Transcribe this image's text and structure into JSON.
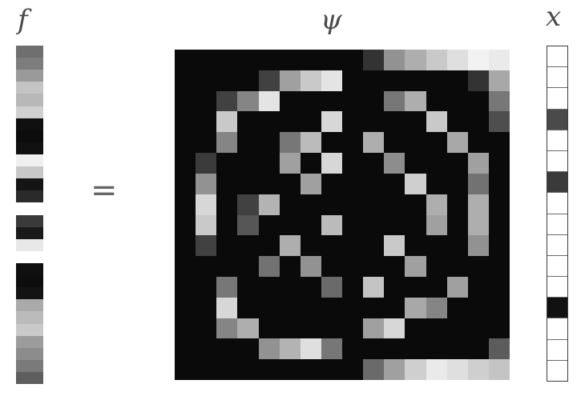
{
  "labels": {
    "f": "f",
    "equals": "=",
    "psi": "ψ",
    "x": "x"
  },
  "f_vector": [
    "#6f6f6f",
    "#7d7d7d",
    "#9a9a9a",
    "#c4c4c4",
    "#b8b8b8",
    "#d0d0d0",
    "#101010",
    "#0c0c0c",
    "#111111",
    "#f0f0f0",
    "#c8c8c8",
    "#151515",
    "#2a2a2a",
    "#ffffff",
    "#3a3a3a",
    "#1a1a1a",
    "#e8e8e8",
    "#ffffff",
    "#101010",
    "#0d0d0d",
    "#131313",
    "#aaaaaa",
    "#bbbbbb",
    "#c9c9c9",
    "#9c9c9c",
    "#8c8c8c",
    "#7a7a7a",
    "#5e5e5e"
  ],
  "psi_matrix": [
    [
      0,
      0,
      0,
      0,
      0,
      0,
      0,
      0,
      0,
      15,
      50,
      60,
      70,
      78,
      85,
      82
    ],
    [
      0,
      0,
      0,
      0,
      20,
      55,
      70,
      80,
      0,
      0,
      0,
      0,
      0,
      0,
      15,
      58
    ],
    [
      0,
      0,
      20,
      45,
      80,
      0,
      0,
      0,
      0,
      0,
      40,
      60,
      0,
      0,
      0,
      40
    ],
    [
      0,
      0,
      70,
      0,
      0,
      0,
      0,
      75,
      0,
      0,
      0,
      0,
      70,
      0,
      0,
      25
    ],
    [
      0,
      0,
      45,
      0,
      0,
      40,
      65,
      0,
      0,
      60,
      0,
      0,
      0,
      58,
      0,
      0
    ],
    [
      0,
      18,
      0,
      0,
      0,
      55,
      0,
      75,
      0,
      0,
      48,
      0,
      0,
      0,
      55,
      0
    ],
    [
      0,
      50,
      0,
      0,
      0,
      0,
      55,
      0,
      0,
      0,
      0,
      72,
      0,
      0,
      38,
      0
    ],
    [
      0,
      75,
      0,
      20,
      62,
      0,
      0,
      0,
      0,
      0,
      0,
      0,
      60,
      0,
      60,
      0
    ],
    [
      0,
      70,
      0,
      28,
      0,
      0,
      0,
      65,
      0,
      0,
      0,
      0,
      55,
      0,
      60,
      0
    ],
    [
      0,
      20,
      0,
      0,
      0,
      60,
      0,
      0,
      0,
      0,
      70,
      0,
      0,
      0,
      50,
      0
    ],
    [
      0,
      0,
      0,
      0,
      38,
      0,
      50,
      0,
      0,
      0,
      0,
      55,
      0,
      0,
      0,
      0
    ],
    [
      0,
      0,
      40,
      0,
      0,
      0,
      0,
      35,
      0,
      68,
      0,
      0,
      0,
      55,
      0,
      0
    ],
    [
      0,
      0,
      75,
      0,
      0,
      0,
      0,
      0,
      0,
      0,
      0,
      58,
      45,
      0,
      0,
      0
    ],
    [
      0,
      0,
      45,
      60,
      0,
      0,
      0,
      0,
      0,
      55,
      75,
      0,
      0,
      0,
      0,
      0
    ],
    [
      0,
      0,
      0,
      0,
      50,
      62,
      78,
      40,
      0,
      0,
      0,
      0,
      0,
      0,
      0,
      30
    ],
    [
      0,
      0,
      0,
      0,
      0,
      0,
      0,
      0,
      0,
      35,
      55,
      72,
      82,
      78,
      72,
      68
    ]
  ],
  "x_vector": [
    "#ffffff",
    "#ffffff",
    "#ffffff",
    "#4a4a4a",
    "#ffffff",
    "#ffffff",
    "#3a3a3a",
    "#ffffff",
    "#ffffff",
    "#ffffff",
    "#ffffff",
    "#ffffff",
    "#111111",
    "#ffffff",
    "#ffffff",
    "#ffffff"
  ]
}
